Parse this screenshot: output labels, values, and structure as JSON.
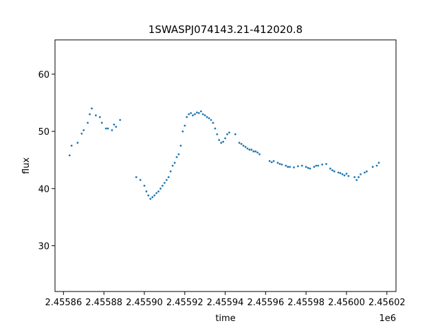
{
  "chart_data": {
    "type": "scatter",
    "title": "1SWASPJ074143.21-412020.8",
    "xlabel": "time",
    "ylabel": "flux",
    "x_offset_label": "1e6",
    "xlim": [
      2455855.8,
      2456024.5
    ],
    "ylim": [
      22,
      66
    ],
    "x_ticks": [
      2455860,
      2455880,
      2455900,
      2455920,
      2455940,
      2455960,
      2455980,
      2456000,
      2456020
    ],
    "x_tick_labels": [
      "2.45586",
      "2.45588",
      "2.45590",
      "2.45592",
      "2.45594",
      "2.45596",
      "2.45598",
      "2.45600",
      "2.45602"
    ],
    "y_ticks": [
      30,
      40,
      50,
      60
    ],
    "y_tick_labels": [
      "30",
      "40",
      "50",
      "60"
    ],
    "grid": false,
    "marker_color": "#1f77b4",
    "series": [
      {
        "x": [
          2455863,
          2455864,
          2455867,
          2455869,
          2455870,
          2455872,
          2455873,
          2455874,
          2455876,
          2455878,
          2455879,
          2455881,
          2455882,
          2455884,
          2455885,
          2455886,
          2455888,
          2455896,
          2455898,
          2455900,
          2455901,
          2455902,
          2455903,
          2455904,
          2455905,
          2455906,
          2455907,
          2455908,
          2455909,
          2455910,
          2455911,
          2455912,
          2455913,
          2455914,
          2455915,
          2455916,
          2455917,
          2455918,
          2455919,
          2455920,
          2455921,
          2455922,
          2455923,
          2455924,
          2455925,
          2455926,
          2455927,
          2455928,
          2455929,
          2455930,
          2455931,
          2455932,
          2455933,
          2455934,
          2455935,
          2455936,
          2455937,
          2455938,
          2455939,
          2455940,
          2455941,
          2455942,
          2455945,
          2455947,
          2455948,
          2455949,
          2455950,
          2455951,
          2455952,
          2455953,
          2455954,
          2455955,
          2455956,
          2455957,
          2455962,
          2455963,
          2455964,
          2455966,
          2455967,
          2455968,
          2455970,
          2455971,
          2455972,
          2455974,
          2455976,
          2455978,
          2455980,
          2455981,
          2455982,
          2455984,
          2455985,
          2455986,
          2455988,
          2455990,
          2455992,
          2455993,
          2455994,
          2455996,
          2455997,
          2455998,
          2455999,
          2456000,
          2456001,
          2456004,
          2456005,
          2456006,
          2456007,
          2456009,
          2456010,
          2456013,
          2456015,
          2456016
        ],
        "y": [
          45.8,
          47.5,
          48.0,
          49.6,
          50.2,
          51.5,
          53.0,
          54.0,
          52.8,
          52.5,
          51.5,
          50.5,
          50.5,
          50.2,
          51.2,
          50.8,
          52.0,
          42.0,
          41.5,
          40.5,
          39.5,
          38.8,
          38.2,
          38.5,
          38.8,
          39.2,
          39.5,
          40.0,
          40.5,
          41.0,
          41.5,
          42.0,
          43.0,
          44.0,
          44.5,
          45.5,
          46.0,
          47.5,
          50.0,
          51.0,
          52.5,
          53.0,
          53.2,
          52.8,
          53.0,
          53.3,
          53.2,
          53.5,
          53.0,
          52.8,
          52.5,
          52.3,
          52.0,
          51.5,
          50.5,
          49.5,
          48.5,
          48.0,
          48.2,
          48.8,
          49.5,
          49.8,
          49.5,
          48.0,
          47.8,
          47.5,
          47.3,
          47.0,
          46.8,
          46.8,
          46.5,
          46.5,
          46.3,
          46.0,
          44.8,
          44.6,
          44.8,
          44.5,
          44.3,
          44.2,
          44.0,
          43.8,
          43.8,
          43.7,
          43.9,
          44.0,
          43.8,
          43.6,
          43.5,
          43.8,
          44.0,
          44.0,
          44.2,
          44.3,
          43.5,
          43.2,
          43.0,
          42.8,
          42.7,
          42.5,
          42.3,
          42.6,
          42.2,
          42.0,
          41.5,
          42.0,
          42.5,
          42.8,
          43.0,
          43.8,
          44.0,
          44.5
        ]
      }
    ]
  }
}
